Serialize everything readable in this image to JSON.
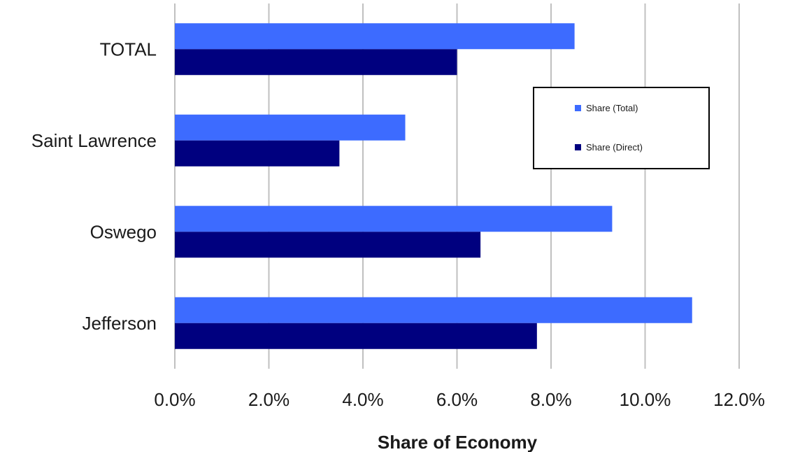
{
  "chart_data": {
    "type": "bar",
    "orientation": "horizontal",
    "categories": [
      "TOTAL",
      "Saint Lawrence",
      "Oswego",
      "Jefferson"
    ],
    "series": [
      {
        "name": "Share (Total)",
        "color": "#3d6bff",
        "values": [
          8.5,
          4.9,
          9.3,
          11.0
        ]
      },
      {
        "name": "Share (Direct)",
        "color": "#00007f",
        "values": [
          6.0,
          3.5,
          6.5,
          7.7
        ]
      }
    ],
    "xlabel": "Share of Economy",
    "ylabel": "",
    "xlim": [
      0,
      12
    ],
    "x_ticks": [
      "0.0%",
      "2.0%",
      "4.0%",
      "6.0%",
      "8.0%",
      "10.0%",
      "12.0%"
    ],
    "grid": true,
    "legend_position": "right"
  }
}
